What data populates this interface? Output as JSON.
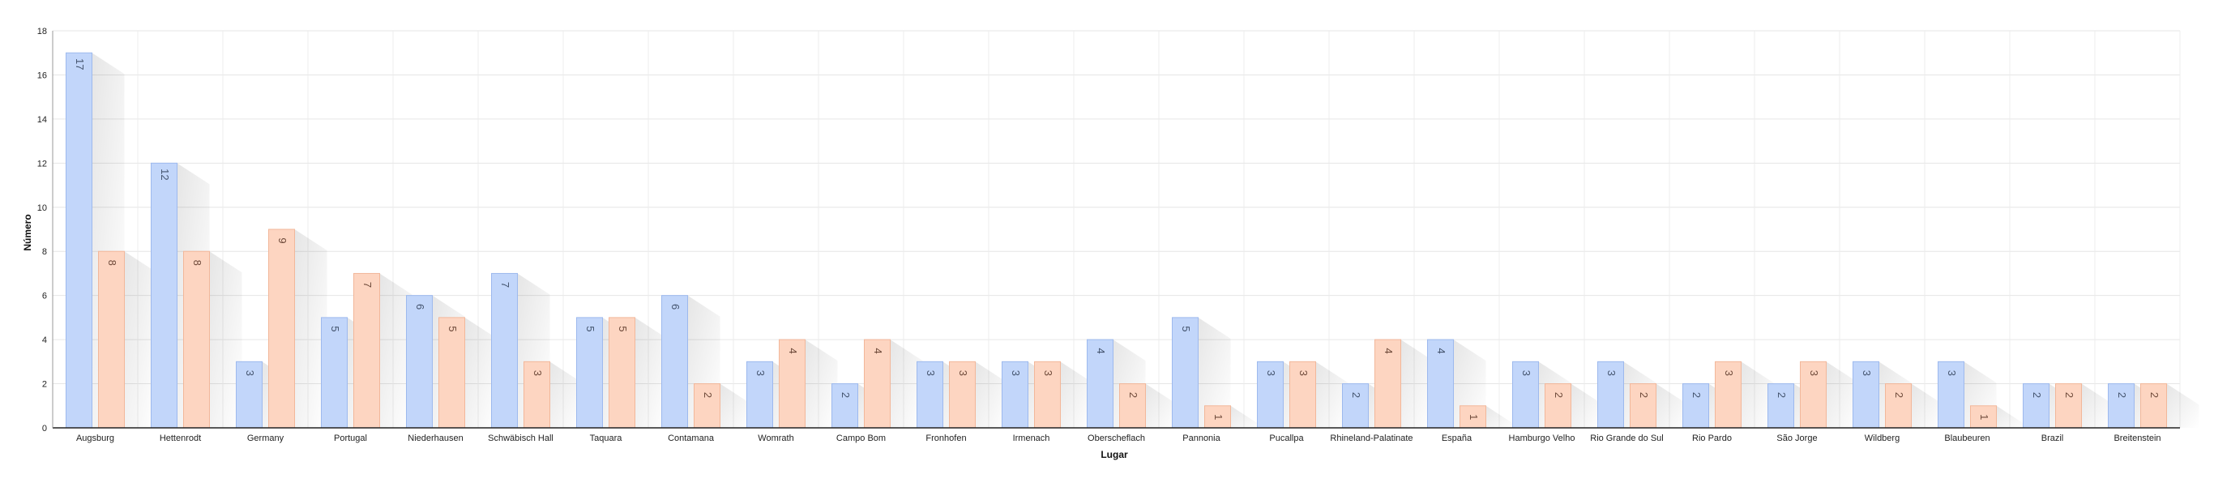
{
  "chart_data": {
    "type": "bar",
    "title": "",
    "xlabel": "Lugar",
    "ylabel": "Número",
    "ylim": [
      0,
      18
    ],
    "yticks": [
      0,
      2,
      4,
      6,
      8,
      10,
      12,
      14,
      16,
      18
    ],
    "grid": true,
    "legend": "none",
    "categories": [
      "Augsburg",
      "Hettenrodt",
      "Germany",
      "Portugal",
      "Niederhausen",
      "Schwäbisch Hall",
      "Taquara",
      "Contamana",
      "Womrath",
      "Campo Bom",
      "Fronhofen",
      "Irmenach",
      "Oberscheflach",
      "Pannonia",
      "Pucallpa",
      "Rhineland-Palatinate",
      "España",
      "Hamburgo Velho",
      "Rio Grande do Sul",
      "Rio Pardo",
      "São Jorge",
      "Wildberg",
      "Blaubeuren",
      "Brazil",
      "Breitenstein"
    ],
    "series": [
      {
        "color": "#c2d6fa",
        "stroke": "#9db9ee",
        "label_color": "#44546e",
        "values": [
          17,
          12,
          3,
          5,
          6,
          7,
          5,
          6,
          3,
          2,
          3,
          3,
          4,
          5,
          3,
          2,
          4,
          3,
          3,
          2,
          2,
          3,
          3,
          2,
          2
        ]
      },
      {
        "color": "#fdd5c1",
        "stroke": "#f2b79a",
        "label_color": "#6e4a3a",
        "values": [
          8,
          8,
          9,
          7,
          5,
          3,
          5,
          2,
          4,
          4,
          3,
          3,
          2,
          1,
          3,
          4,
          1,
          2,
          2,
          3,
          3,
          2,
          1,
          2,
          2
        ]
      }
    ]
  }
}
